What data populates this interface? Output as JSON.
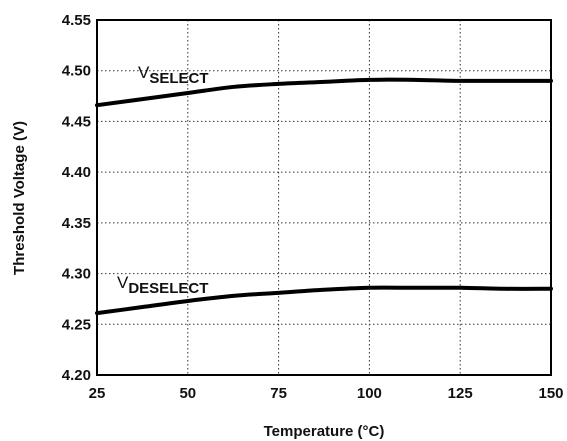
{
  "chart_data": {
    "type": "line",
    "xlabel": "Temperature (°C)",
    "ylabel": "Threshold Voltage (V)",
    "xlim": [
      25,
      150
    ],
    "ylim": [
      4.2,
      4.55
    ],
    "x_ticks": [
      "25",
      "50",
      "75",
      "100",
      "125",
      "150"
    ],
    "y_ticks": [
      "4.20",
      "4.25",
      "4.30",
      "4.35",
      "4.40",
      "4.45",
      "4.50",
      "4.55"
    ],
    "grid": true,
    "series": [
      {
        "name_main": "V",
        "name_sub": "SELECT",
        "x": [
          25,
          37.5,
          50,
          62.5,
          75,
          87.5,
          100,
          112.5,
          125,
          137.5,
          150
        ],
        "y": [
          4.466,
          4.472,
          4.478,
          4.484,
          4.487,
          4.489,
          4.491,
          4.491,
          4.49,
          4.49,
          4.49
        ]
      },
      {
        "name_main": "V",
        "name_sub": "DESELECT",
        "x": [
          25,
          37.5,
          50,
          62.5,
          75,
          87.5,
          100,
          112.5,
          125,
          137.5,
          150
        ],
        "y": [
          4.261,
          4.267,
          4.273,
          4.278,
          4.281,
          4.284,
          4.286,
          4.286,
          4.286,
          4.285,
          4.285
        ]
      }
    ]
  }
}
